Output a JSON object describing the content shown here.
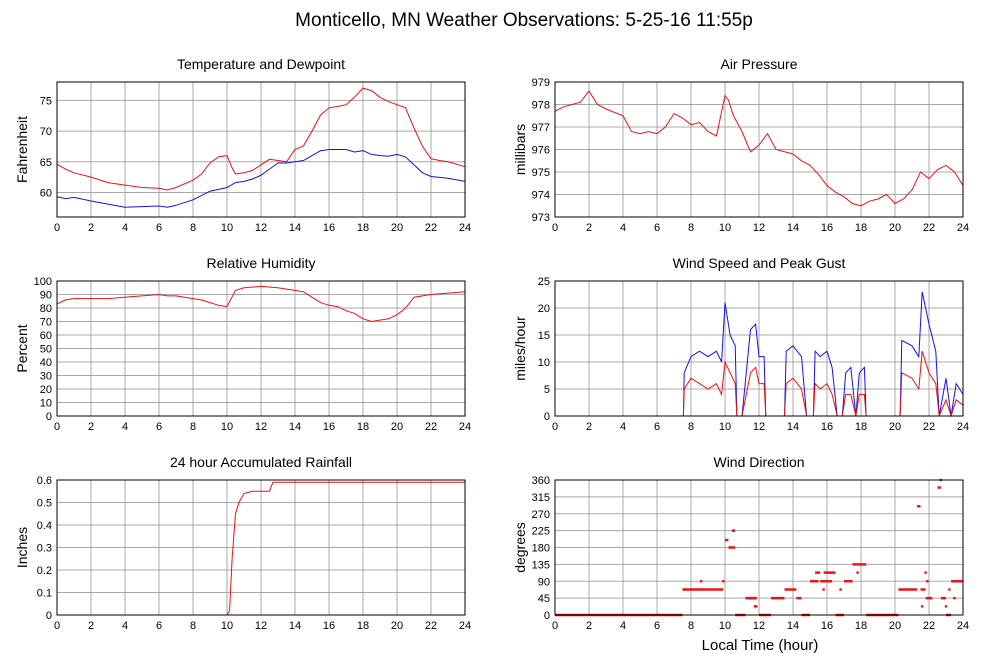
{
  "title": "Monticello, MN Weather Observations: 5-25-16 11:55p",
  "xlabel": "Local Time (hour)",
  "colors": {
    "red": "#ee1111",
    "blue": "#1111ee",
    "grid": "#a8a8a8"
  },
  "chart_data": [
    {
      "type": "line",
      "title": "Temperature and Dewpoint",
      "ylabel": "Fahrenheit",
      "xlim": [
        0,
        24
      ],
      "ylim": [
        56,
        78
      ],
      "xticks": [
        0,
        2,
        4,
        6,
        8,
        10,
        12,
        14,
        16,
        18,
        20,
        22,
        24
      ],
      "yticks": [
        60,
        65,
        70,
        75
      ],
      "grid": true,
      "series": [
        {
          "color": "#ee1111",
          "x": [
            0,
            0.5,
            1,
            2,
            3,
            4,
            5,
            6,
            6.5,
            7,
            8,
            8.5,
            9,
            9.5,
            10,
            10.3,
            10.5,
            11,
            11.5,
            12,
            12.5,
            13,
            13.5,
            14,
            14.5,
            15,
            15.5,
            16,
            16.5,
            17,
            17.5,
            18,
            18.5,
            19,
            19.5,
            20,
            20.5,
            21,
            21.5,
            22,
            22.5,
            23,
            24
          ],
          "values": [
            64.6,
            63.8,
            63.2,
            62.5,
            61.6,
            61.2,
            60.8,
            60.7,
            60.4,
            60.8,
            62.0,
            63.0,
            64.8,
            65.8,
            66.0,
            64.0,
            63.0,
            63.2,
            63.6,
            64.5,
            65.4,
            65.2,
            65.0,
            67.0,
            67.6,
            70.0,
            72.6,
            73.8,
            74.0,
            74.3,
            75.5,
            77.0,
            76.6,
            75.5,
            74.8,
            74.3,
            73.8,
            70.5,
            67.5,
            65.5,
            65.2,
            65.0,
            64.2
          ]
        },
        {
          "color": "#1111ee",
          "x": [
            0,
            0.5,
            1,
            2,
            3,
            4,
            5,
            6,
            6.5,
            7,
            8,
            9,
            10,
            10.5,
            11,
            11.5,
            12,
            12.5,
            13,
            13.5,
            14,
            14.5,
            15,
            15.5,
            16,
            16.5,
            17,
            17.5,
            18,
            18.5,
            19,
            19.5,
            20,
            20.5,
            21,
            21.5,
            22,
            23,
            24
          ],
          "values": [
            59.3,
            59.0,
            59.2,
            58.6,
            58.1,
            57.6,
            57.7,
            57.8,
            57.6,
            57.9,
            58.8,
            60.2,
            60.8,
            61.6,
            61.8,
            62.2,
            62.8,
            63.8,
            64.8,
            64.8,
            65.0,
            65.2,
            66.0,
            66.8,
            67.0,
            67.0,
            67.0,
            66.6,
            66.8,
            66.2,
            66.0,
            65.9,
            66.2,
            65.8,
            64.5,
            63.2,
            62.6,
            62.3,
            61.8
          ]
        }
      ]
    },
    {
      "type": "line",
      "title": "Air Pressure",
      "ylabel": "millibars",
      "xlim": [
        0,
        24
      ],
      "ylim": [
        973,
        979
      ],
      "xticks": [
        0,
        2,
        4,
        6,
        8,
        10,
        12,
        14,
        16,
        18,
        20,
        22,
        24
      ],
      "yticks": [
        973,
        974,
        975,
        976,
        977,
        978,
        979
      ],
      "grid": true,
      "series": [
        {
          "color": "#ee1111",
          "x": [
            0,
            0.5,
            1,
            1.5,
            2,
            2.5,
            3,
            4,
            4.5,
            5,
            5.5,
            6,
            6.5,
            7,
            7.5,
            8,
            8.5,
            9,
            9.5,
            10,
            10.2,
            10.5,
            11,
            11.5,
            12,
            12.5,
            13,
            14,
            14.5,
            15,
            15.5,
            16,
            16.5,
            17,
            17.5,
            18,
            18.5,
            19,
            19.5,
            20,
            20.5,
            21,
            21.5,
            22,
            22.5,
            23,
            23.5,
            24
          ],
          "values": [
            977.7,
            977.9,
            978.0,
            978.1,
            978.6,
            978.0,
            977.8,
            977.5,
            976.8,
            976.7,
            976.8,
            976.7,
            977.0,
            977.6,
            977.4,
            977.1,
            977.2,
            976.8,
            976.6,
            978.4,
            978.2,
            977.5,
            976.8,
            975.9,
            976.2,
            976.7,
            976.0,
            975.8,
            975.5,
            975.3,
            974.9,
            974.4,
            974.1,
            973.9,
            973.6,
            973.5,
            973.7,
            973.8,
            974.0,
            973.6,
            973.8,
            974.2,
            975.0,
            974.7,
            975.1,
            975.3,
            975.0,
            974.4
          ]
        }
      ]
    },
    {
      "type": "line",
      "title": "Relative Humidity",
      "ylabel": "Percent",
      "xlim": [
        0,
        24
      ],
      "ylim": [
        0,
        100
      ],
      "xticks": [
        0,
        2,
        4,
        6,
        8,
        10,
        12,
        14,
        16,
        18,
        20,
        22,
        24
      ],
      "yticks": [
        0,
        10,
        20,
        30,
        40,
        50,
        60,
        70,
        80,
        90,
        100
      ],
      "grid": true,
      "series": [
        {
          "color": "#ee1111",
          "x": [
            0,
            0.5,
            1,
            2,
            3,
            4,
            5,
            6,
            6.5,
            7,
            8,
            8.5,
            9,
            9.5,
            10,
            10.5,
            11,
            12,
            13,
            13.5,
            14,
            14.5,
            15,
            15.5,
            16,
            16.5,
            17,
            17.5,
            18,
            18.5,
            19,
            19.5,
            20,
            20.5,
            21,
            22,
            23,
            24
          ],
          "values": [
            83,
            86,
            87,
            87,
            87,
            88,
            89,
            90,
            89,
            89,
            87,
            86,
            84,
            82,
            81,
            93,
            95,
            96,
            95,
            94,
            93,
            92,
            88,
            84,
            82,
            81,
            78,
            76,
            72,
            70,
            71,
            72,
            75,
            80,
            88,
            90,
            91,
            92
          ]
        }
      ]
    },
    {
      "type": "line",
      "title": "Wind Speed and Peak Gust",
      "ylabel": "miles/hour",
      "xlim": [
        0,
        24
      ],
      "ylim": [
        0,
        25
      ],
      "xticks": [
        0,
        2,
        4,
        6,
        8,
        10,
        12,
        14,
        16,
        18,
        20,
        22,
        24
      ],
      "yticks": [
        0,
        5,
        10,
        15,
        20,
        25
      ],
      "grid": true,
      "series": [
        {
          "color": "#1111ee",
          "x": [
            0,
            7.55,
            7.6,
            8,
            8.5,
            9,
            9.5,
            9.8,
            10,
            10.3,
            10.6,
            10.7,
            11,
            11.5,
            11.8,
            12,
            12.3,
            12.4,
            13.5,
            13.6,
            14,
            14.5,
            14.8,
            15.2,
            15.3,
            15.6,
            16,
            16.3,
            16.6,
            16.9,
            17.1,
            17.4,
            17.7,
            17.9,
            18.2,
            18.3,
            20.3,
            20.4,
            21,
            21.4,
            21.6,
            22,
            22.4,
            22.6,
            23,
            23.3,
            23.6,
            24
          ],
          "values": [
            0,
            0,
            8,
            11,
            12,
            11,
            12,
            10,
            21,
            15,
            13,
            0,
            0,
            16,
            17,
            11,
            11,
            0,
            0,
            12,
            13,
            11,
            0,
            0,
            12,
            11,
            12,
            9,
            0,
            0,
            8,
            9,
            0,
            8,
            9,
            0,
            0,
            14,
            13,
            11,
            23,
            17,
            12,
            0,
            7,
            0,
            6,
            4
          ]
        },
        {
          "color": "#ee1111",
          "x": [
            0,
            7.55,
            7.6,
            8,
            8.5,
            9,
            9.5,
            9.8,
            10,
            10.3,
            10.6,
            10.7,
            11,
            11.5,
            11.8,
            12,
            12.3,
            12.4,
            13.5,
            13.6,
            14,
            14.5,
            14.8,
            15.2,
            15.3,
            15.6,
            16,
            16.3,
            16.6,
            16.9,
            17.1,
            17.4,
            17.7,
            17.9,
            18.2,
            18.3,
            20.3,
            20.4,
            21,
            21.4,
            21.6,
            22,
            22.4,
            22.6,
            23,
            23.3,
            23.6,
            24
          ],
          "values": [
            0,
            0,
            5,
            7,
            6,
            5,
            6,
            4,
            10,
            8,
            6,
            0,
            0,
            8,
            9,
            6,
            6,
            0,
            0,
            6,
            7,
            5,
            0,
            0,
            6,
            5,
            6,
            4,
            0,
            0,
            4,
            4,
            0,
            4,
            4,
            0,
            0,
            8,
            7,
            5,
            12,
            8,
            6,
            0,
            3,
            0,
            3,
            2
          ]
        }
      ]
    },
    {
      "type": "line",
      "title": "24 hour Accumulated Rainfall",
      "ylabel": "Inches",
      "xlim": [
        0,
        24
      ],
      "ylim": [
        0,
        0.6
      ],
      "xticks": [
        0,
        2,
        4,
        6,
        8,
        10,
        12,
        14,
        16,
        18,
        20,
        22,
        24
      ],
      "yticks": [
        0,
        0.1,
        0.2,
        0.3,
        0.4,
        0.5,
        0.6
      ],
      "grid": true,
      "series": [
        {
          "color": "#ee1111",
          "x": [
            0,
            10.0,
            10.15,
            10.3,
            10.5,
            10.7,
            11.0,
            11.5,
            12.0,
            12.5,
            12.7,
            24
          ],
          "values": [
            0,
            0,
            0.02,
            0.25,
            0.45,
            0.5,
            0.54,
            0.55,
            0.55,
            0.55,
            0.59,
            0.59
          ]
        }
      ]
    },
    {
      "type": "scatter",
      "title": "Wind Direction",
      "ylabel": "degrees",
      "xlim": [
        0,
        24
      ],
      "ylim": [
        0,
        360
      ],
      "xticks": [
        0,
        2,
        4,
        6,
        8,
        10,
        12,
        14,
        16,
        18,
        20,
        22,
        24
      ],
      "yticks": [
        0,
        45,
        90,
        135,
        180,
        225,
        270,
        315,
        360
      ],
      "grid": true,
      "segments": [
        [
          0,
          7.5,
          0
        ],
        [
          7.5,
          9.9,
          68
        ],
        [
          10.0,
          10.2,
          200
        ],
        [
          10.2,
          10.6,
          180
        ],
        [
          10.4,
          10.6,
          225
        ],
        [
          10.6,
          11.2,
          0
        ],
        [
          11.2,
          11.8,
          45
        ],
        [
          11.7,
          11.9,
          23
        ],
        [
          12.0,
          12.7,
          0
        ],
        [
          12.7,
          13.5,
          45
        ],
        [
          13.5,
          14.2,
          68
        ],
        [
          14.2,
          14.5,
          45
        ],
        [
          14.5,
          15.0,
          0
        ],
        [
          15.0,
          15.5,
          90
        ],
        [
          15.3,
          15.6,
          113
        ],
        [
          15.6,
          16.3,
          90
        ],
        [
          15.8,
          16.5,
          113
        ],
        [
          16.5,
          17.0,
          0
        ],
        [
          17.0,
          17.5,
          90
        ],
        [
          17.5,
          17.8,
          135
        ],
        [
          17.8,
          18.3,
          135
        ],
        [
          18.3,
          20.2,
          0
        ],
        [
          20.2,
          21.3,
          68
        ],
        [
          21.3,
          21.5,
          290
        ],
        [
          21.5,
          21.8,
          68
        ],
        [
          21.8,
          22.2,
          45
        ],
        [
          22.5,
          22.7,
          340
        ],
        [
          22.7,
          23.0,
          45
        ],
        [
          23.0,
          23.3,
          0
        ],
        [
          23.3,
          24,
          90
        ]
      ],
      "points": [
        [
          8.6,
          90
        ],
        [
          9.9,
          90
        ],
        [
          11.8,
          45
        ],
        [
          11.5,
          45
        ],
        [
          15.8,
          68
        ],
        [
          16.8,
          68
        ],
        [
          17.8,
          113
        ],
        [
          21.8,
          113
        ],
        [
          21.9,
          90
        ],
        [
          21.6,
          23
        ],
        [
          22.7,
          360
        ],
        [
          23.0,
          23
        ],
        [
          23.2,
          68
        ],
        [
          23.5,
          45
        ]
      ]
    }
  ]
}
